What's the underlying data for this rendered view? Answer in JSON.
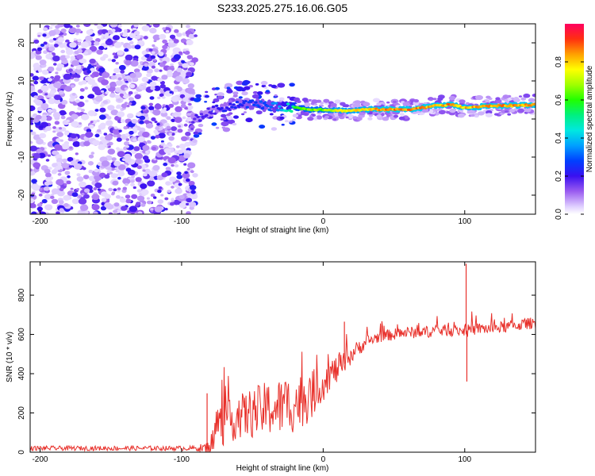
{
  "title": "S233.2025.275.16.06.G05",
  "chart_data": [
    {
      "type": "heatmap",
      "name": "spectrogram",
      "xlabel": "Height of straight line (km)",
      "ylabel": "Frequency (Hz)",
      "xlim": [
        -207,
        150
      ],
      "ylim": [
        -25,
        25
      ],
      "xticks": [
        -200,
        -100,
        0,
        100
      ],
      "xtick_labels": [
        "-200",
        "-100",
        "0",
        "100"
      ],
      "yticks": [
        -20,
        -10,
        0,
        10,
        20
      ],
      "ytick_labels": [
        "-20",
        "-10",
        "0",
        "10",
        "20"
      ],
      "colorbar": {
        "label": "Normalized spectral amplitude",
        "range": [
          0,
          1
        ],
        "ticks": [
          0.0,
          0.2,
          0.4,
          0.6,
          0.8
        ],
        "tick_labels": [
          "0.0",
          "0.2",
          "0.4",
          "0.6",
          "0.8"
        ],
        "colormap": "rainbow (purple to red)"
      },
      "ridge": {
        "x": [
          -90,
          -80,
          -70,
          -60,
          -50,
          -40,
          -30,
          -20,
          -10,
          0,
          10,
          20,
          30,
          40,
          50,
          60,
          70,
          80,
          90,
          100,
          110,
          120,
          130,
          140,
          150
        ],
        "freq": [
          0.0,
          2.0,
          3.0,
          4.0,
          4.0,
          3.5,
          3.0,
          3.0,
          2.5,
          2.5,
          2.2,
          2.2,
          2.5,
          2.5,
          2.5,
          2.5,
          3.0,
          3.5,
          3.8,
          3.0,
          3.2,
          3.5,
          3.5,
          3.6,
          3.8
        ],
        "amplitude": [
          0.2,
          0.2,
          0.25,
          0.25,
          0.3,
          0.3,
          0.4,
          0.6,
          0.7,
          0.7,
          0.8,
          0.8,
          0.85,
          0.9,
          0.9,
          0.9,
          0.9,
          0.9,
          0.9,
          0.85,
          0.9,
          0.9,
          0.9,
          0.9,
          0.9
        ]
      },
      "noise_region": {
        "x_from": -207,
        "x_to": -90,
        "typical_amplitude": 0.05
      }
    },
    {
      "type": "line",
      "name": "snr",
      "xlabel": "Height of straight line (km)",
      "ylabel": "SNR (10 * v/v)",
      "xlim": [
        -207,
        150
      ],
      "ylim": [
        0,
        970
      ],
      "xticks": [
        -200,
        -100,
        0,
        100
      ],
      "xtick_labels": [
        "-200",
        "-100",
        "0",
        "100"
      ],
      "yticks": [
        0,
        200,
        400,
        600,
        800
      ],
      "ytick_labels": [
        "0",
        "200",
        "400",
        "600",
        "800"
      ],
      "color": "#e8302a",
      "series": [
        {
          "name": "SNR",
          "x": [
            -207,
            -90,
            -80,
            -75,
            -70,
            -60,
            -50,
            -40,
            -30,
            -20,
            -10,
            -5,
            0,
            5,
            10,
            15,
            20,
            25,
            30,
            40,
            50,
            60,
            70,
            80,
            90,
            100,
            101,
            102,
            110,
            120,
            130,
            140,
            150
          ],
          "base": [
            20,
            20,
            20,
            150,
            140,
            180,
            200,
            220,
            230,
            250,
            280,
            320,
            350,
            400,
            420,
            450,
            500,
            530,
            560,
            590,
            600,
            610,
            610,
            620,
            620,
            620,
            620,
            620,
            630,
            630,
            640,
            650,
            660
          ],
          "noise": [
            12,
            12,
            40,
            110,
            110,
            110,
            130,
            140,
            150,
            150,
            130,
            110,
            90,
            80,
            70,
            60,
            50,
            40,
            35,
            30,
            30,
            30,
            30,
            30,
            30,
            30,
            30,
            30,
            30,
            30,
            30,
            30,
            30
          ]
        }
      ],
      "spikes": [
        {
          "x": 101,
          "y": 960
        },
        {
          "x": 101.5,
          "y": 360
        },
        {
          "x": 15,
          "y": 665
        },
        {
          "x": -82,
          "y": 300
        }
      ]
    }
  ]
}
